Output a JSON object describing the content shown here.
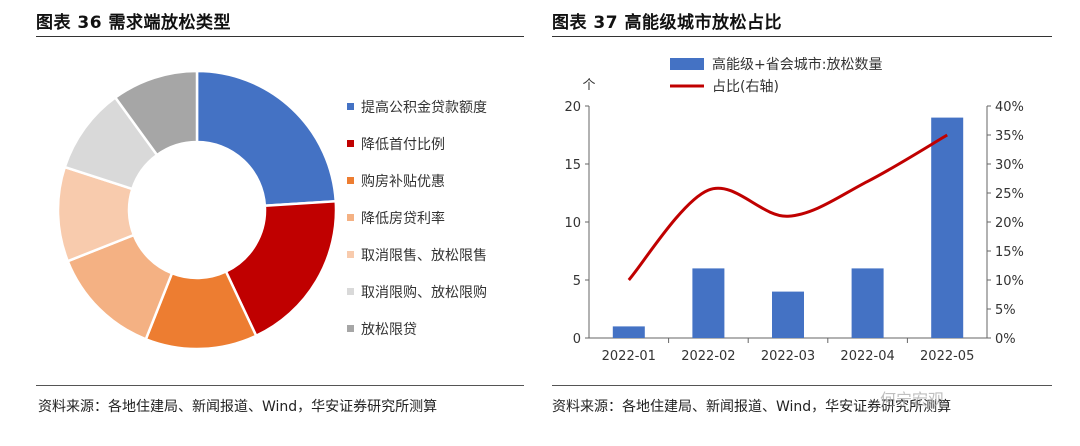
{
  "left": {
    "title": "图表 36  需求端放松类型",
    "source": "资料来源：各地住建局、新闻报道、Wind，华安证券研究所测算"
  },
  "right": {
    "title": "图表 37  高能级城市放松占比",
    "source": "资料来源：各地住建局、新闻报道、Wind，华安证券研究所测算"
  },
  "watermark": "何宁宏观",
  "chart_data": [
    {
      "type": "pie",
      "variant": "donut",
      "title": "",
      "legend_position": "right",
      "categories": [
        "提高公积金贷款额度",
        "降低首付比例",
        "购房补贴优惠",
        "降低房贷利率",
        "取消限售、放松限售",
        "取消限购、放松限购",
        "放松限贷"
      ],
      "values": [
        24,
        19,
        13,
        13,
        11,
        10,
        10
      ],
      "colors": [
        "#4472C4",
        "#C00000",
        "#ED7D31",
        "#F4B183",
        "#F8CBAD",
        "#D9D9D9",
        "#A6A6A6"
      ]
    },
    {
      "type": "bar",
      "title": "",
      "legend_position": "top",
      "categories": [
        "2022-01",
        "2022-02",
        "2022-03",
        "2022-04",
        "2022-05"
      ],
      "series": [
        {
          "name": "高能级+省会城市:放松数量",
          "type": "bar",
          "axis": "left",
          "values": [
            1,
            6,
            4,
            6,
            19
          ],
          "color": "#4472C4"
        },
        {
          "name": "占比(右轴)",
          "type": "line",
          "axis": "right",
          "values": [
            10,
            25.5,
            21,
            27,
            35
          ],
          "color": "#C00000"
        }
      ],
      "y_left": {
        "unit_label": "个",
        "min": 0,
        "max": 20,
        "ticks": [
          "0",
          "5",
          "10",
          "15",
          "20"
        ]
      },
      "y_right": {
        "min": 0,
        "max": 40,
        "ticks": [
          "0%",
          "5%",
          "10%",
          "15%",
          "20%",
          "25%",
          "30%",
          "35%",
          "40%"
        ]
      },
      "grid": false
    }
  ]
}
